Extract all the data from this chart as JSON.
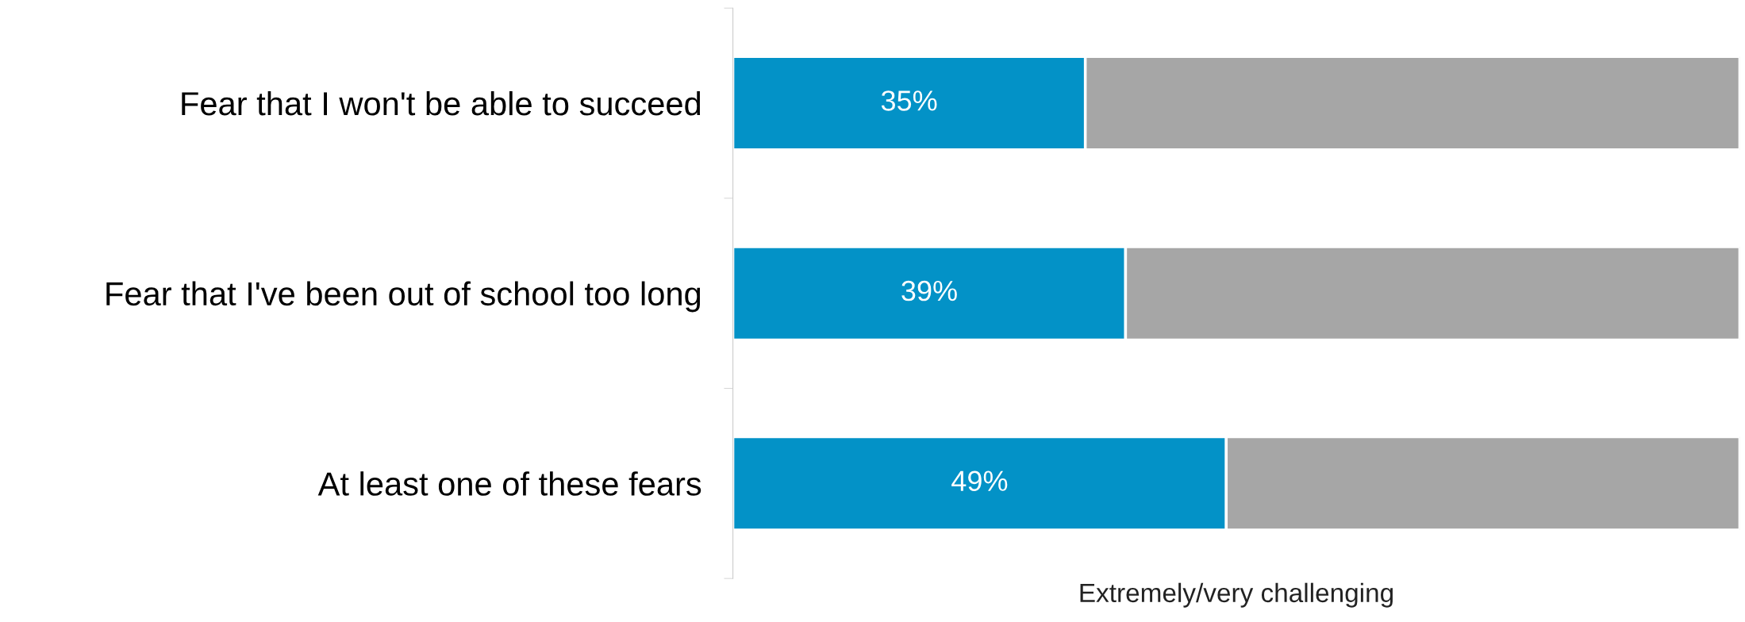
{
  "chart_data": {
    "type": "bar",
    "orientation": "horizontal",
    "stacked": true,
    "categories": [
      "Fear that I won't be able to succeed",
      "Fear that I've been out of school too long",
      "At least one of these fears"
    ],
    "series": [
      {
        "color": "#0392c7",
        "values": [
          35,
          39,
          49
        ],
        "value_labels": [
          "35%",
          "39%",
          "49%"
        ]
      },
      {
        "color": "#a6a6a6",
        "values": [
          65,
          61,
          51
        ]
      }
    ],
    "xlim": [
      0,
      100
    ],
    "tick_labels": "y",
    "xlabel": "Extremely/very challenging",
    "grid": false,
    "legend": false
  }
}
